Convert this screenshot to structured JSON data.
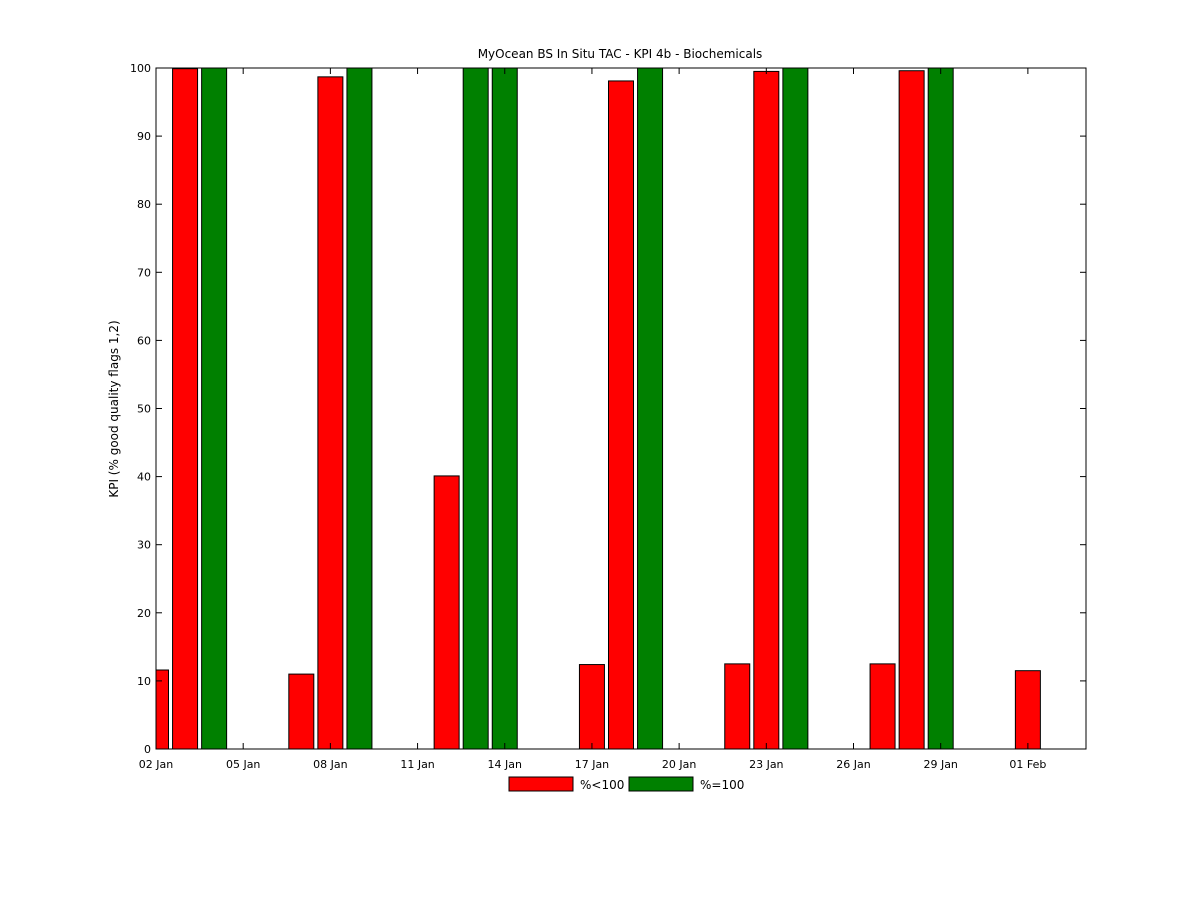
{
  "chart_data": {
    "type": "bar",
    "title": "MyOcean  BS In Situ TAC - KPI 4b - Biochemicals",
    "xlabel": "",
    "ylabel": "KPI (% good quality flags 1,2)",
    "ylim": [
      0,
      100
    ],
    "yticks": [
      "0",
      "10",
      "20",
      "30",
      "40",
      "50",
      "60",
      "70",
      "80",
      "90",
      "100"
    ],
    "xlim": [
      "02 Jan",
      "03 Feb"
    ],
    "xticks": [
      "02 Jan",
      "05 Jan",
      "08 Jan",
      "11 Jan",
      "14 Jan",
      "17 Jan",
      "20 Jan",
      "23 Jan",
      "26 Jan",
      "29 Jan",
      "01 Feb"
    ],
    "grid": false,
    "legend_position": "bottom-center",
    "series": [
      {
        "name": "%<100",
        "color": "#ff0000",
        "points": [
          {
            "x": "02 Jan",
            "y": 11.6
          },
          {
            "x": "03 Jan",
            "y": 99.9
          },
          {
            "x": "07 Jan",
            "y": 11.0
          },
          {
            "x": "08 Jan",
            "y": 98.7
          },
          {
            "x": "12 Jan",
            "y": 40.1
          },
          {
            "x": "17 Jan",
            "y": 12.4
          },
          {
            "x": "18 Jan",
            "y": 98.1
          },
          {
            "x": "22 Jan",
            "y": 12.5
          },
          {
            "x": "23 Jan",
            "y": 99.5
          },
          {
            "x": "27 Jan",
            "y": 12.5
          },
          {
            "x": "28 Jan",
            "y": 99.6
          },
          {
            "x": "01 Feb",
            "y": 11.5
          }
        ]
      },
      {
        "name": "%=100",
        "color": "#008000",
        "points": [
          {
            "x": "04 Jan",
            "y": 100
          },
          {
            "x": "09 Jan",
            "y": 100
          },
          {
            "x": "13 Jan",
            "y": 100
          },
          {
            "x": "14 Jan",
            "y": 100
          },
          {
            "x": "19 Jan",
            "y": 100
          },
          {
            "x": "24 Jan",
            "y": 100
          },
          {
            "x": "29 Jan",
            "y": 100
          }
        ]
      }
    ]
  }
}
